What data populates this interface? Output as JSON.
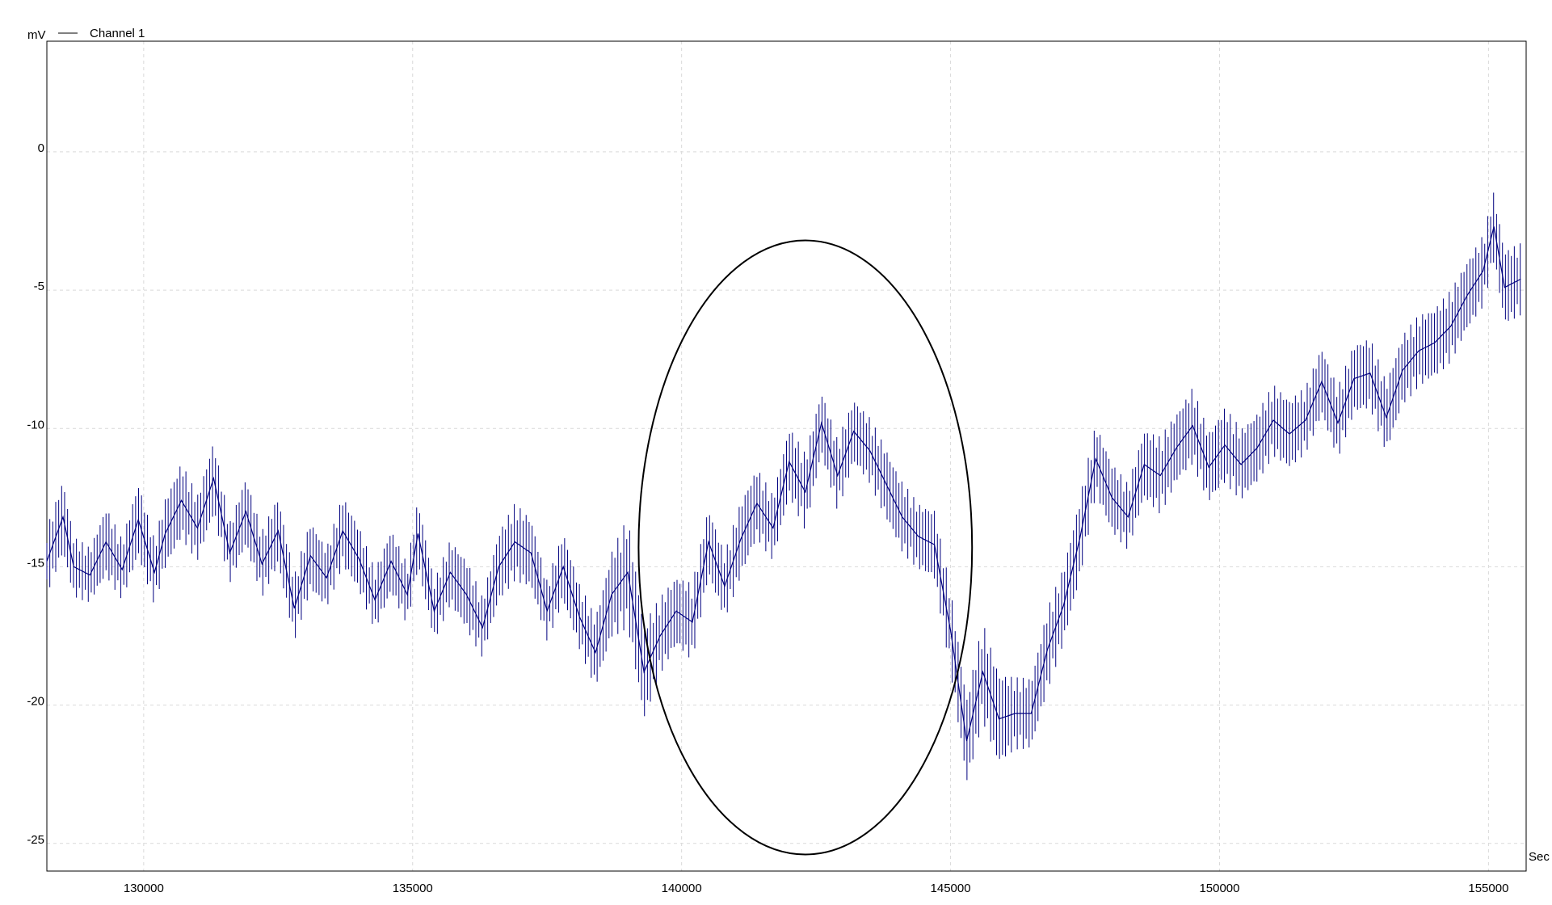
{
  "chart_data": {
    "type": "line",
    "ylabel": "mV",
    "xlabel": "Sec",
    "xlim": [
      128200,
      155700
    ],
    "ylim": [
      -26,
      4
    ],
    "grid": true,
    "legend_position": "top-left",
    "xticks": [
      130000,
      135000,
      140000,
      145000,
      150000,
      155000
    ],
    "xtick_labels": [
      "130000",
      "135000",
      "140000",
      "145000",
      "150000",
      "155000"
    ],
    "yticks": [
      0,
      -5,
      -10,
      -15,
      -20,
      -25
    ],
    "ytick_labels": [
      "0",
      "-5",
      "-10",
      "-15",
      "-20",
      "-25"
    ],
    "series": [
      {
        "name": "Channel 1",
        "color": "#00007f",
        "x": [
          128200,
          128500,
          128700,
          129000,
          129300,
          129600,
          129900,
          130200,
          130400,
          130700,
          131000,
          131300,
          131600,
          131900,
          132200,
          132500,
          132800,
          133100,
          133400,
          133700,
          134000,
          134300,
          134600,
          134900,
          135100,
          135400,
          135700,
          136000,
          136300,
          136600,
          136900,
          137200,
          137500,
          137800,
          138100,
          138400,
          138700,
          139000,
          139300,
          139600,
          139900,
          140200,
          140500,
          140800,
          141100,
          141400,
          141700,
          142000,
          142300,
          142600,
          142900,
          143200,
          143500,
          143800,
          144100,
          144400,
          144700,
          145000,
          145300,
          145600,
          145900,
          146200,
          146500,
          146800,
          147100,
          147400,
          147700,
          148000,
          148300,
          148600,
          148900,
          149200,
          149500,
          149800,
          150100,
          150400,
          150700,
          151000,
          151300,
          151600,
          151900,
          152200,
          152500,
          152800,
          153100,
          153400,
          153700,
          154000,
          154300,
          154600,
          154900,
          155100,
          155300,
          155600
        ],
        "y": [
          -14.8,
          -13.2,
          -15.0,
          -15.3,
          -14.1,
          -15.1,
          -13.3,
          -15.2,
          -13.8,
          -12.6,
          -13.6,
          -11.8,
          -14.5,
          -13.0,
          -14.9,
          -13.7,
          -16.5,
          -14.6,
          -15.4,
          -13.7,
          -14.7,
          -16.2,
          -14.8,
          -16.0,
          -13.8,
          -16.6,
          -15.2,
          -16.0,
          -17.2,
          -15.0,
          -14.1,
          -14.5,
          -16.6,
          -15.0,
          -16.8,
          -18.1,
          -16.0,
          -15.2,
          -18.8,
          -17.5,
          -16.6,
          -17.0,
          -14.1,
          -15.7,
          -14.0,
          -12.7,
          -13.6,
          -11.2,
          -12.3,
          -9.8,
          -11.7,
          -10.1,
          -10.8,
          -12.0,
          -13.2,
          -13.9,
          -14.2,
          -17.3,
          -21.3,
          -18.8,
          -20.5,
          -20.3,
          -20.3,
          -18.0,
          -16.4,
          -14.0,
          -11.1,
          -12.5,
          -13.2,
          -11.3,
          -11.7,
          -10.7,
          -9.9,
          -11.4,
          -10.6,
          -11.3,
          -10.7,
          -9.7,
          -10.2,
          -9.7,
          -8.3,
          -9.8,
          -8.2,
          -8.0,
          -9.6,
          -7.9,
          -7.2,
          -6.9,
          -6.3,
          -5.2,
          -4.3,
          -2.7,
          -4.9,
          -4.6
        ],
        "spread": [
          1.2,
          1.4,
          1.1,
          1.0,
          1.3,
          1.1,
          1.4,
          1.2,
          1.3,
          1.4,
          1.2,
          1.4,
          1.1,
          1.3,
          1.2,
          1.3,
          1.2,
          1.3,
          1.1,
          1.3,
          1.2,
          1.1,
          1.2,
          1.1,
          1.3,
          1.1,
          1.2,
          1.3,
          1.1,
          1.3,
          1.4,
          1.3,
          1.1,
          1.3,
          1.2,
          1.3,
          1.6,
          2.0,
          1.8,
          1.4,
          1.3,
          1.4,
          1.3,
          1.2,
          1.4,
          1.3,
          1.2,
          1.3,
          1.4,
          1.2,
          1.3,
          1.2,
          1.2,
          1.3,
          1.3,
          1.2,
          1.3,
          1.5,
          1.6,
          1.8,
          1.7,
          1.3,
          1.3,
          1.5,
          1.4,
          1.5,
          1.3,
          1.3,
          1.2,
          1.3,
          1.4,
          1.3,
          1.4,
          1.3,
          1.4,
          1.3,
          1.3,
          1.3,
          1.3,
          1.2,
          1.3,
          1.3,
          1.3,
          1.3,
          1.3,
          1.3,
          1.3,
          1.3,
          1.3,
          1.3,
          1.3,
          1.3,
          1.4,
          1.3
        ]
      }
    ],
    "annotations": [
      {
        "type": "ellipse",
        "center_x": 142300,
        "center_y": -14.3,
        "radius_x": 3100,
        "radius_y": 11.1,
        "color": "#000000"
      }
    ]
  }
}
